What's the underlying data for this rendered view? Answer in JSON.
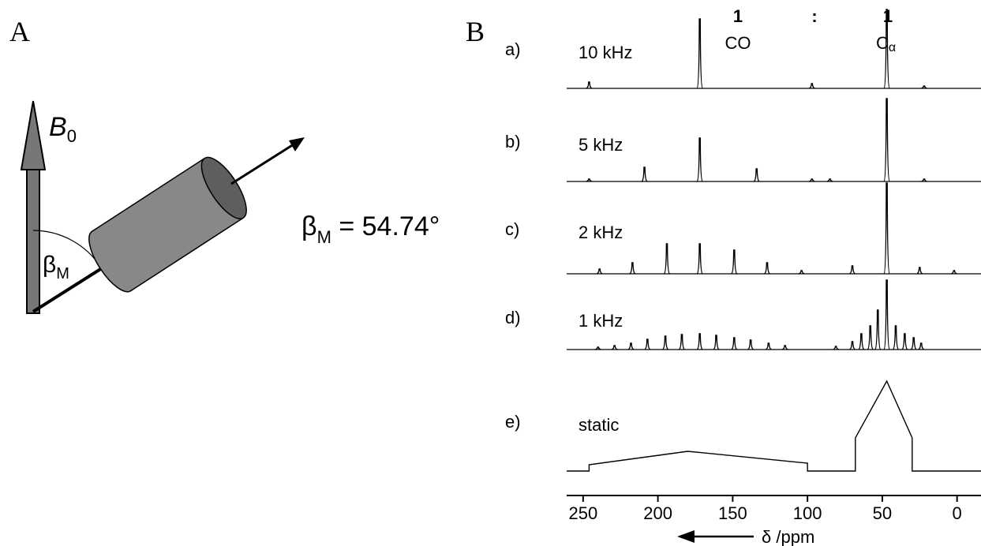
{
  "panel_a": {
    "label": "A",
    "field": "B",
    "field_sub": "0",
    "angle": "β",
    "angle_sub": "M",
    "equation_symbol": "β",
    "equation_sub": "M",
    "equation_rest": " = 54.74°"
  },
  "chart_data": {
    "type": "spectrum",
    "panel_label": "B",
    "ratio": [
      "1",
      ":",
      "1"
    ],
    "peak_labels": {
      "co": "CO",
      "ca": "C",
      "ca_sub": "α"
    },
    "x_label": "δ /ppm",
    "xlim": [
      261,
      -16
    ],
    "xticks": [
      250,
      200,
      150,
      100,
      50,
      0
    ],
    "series": [
      {
        "tag": "a)",
        "name": "10 kHz",
        "style": "peaks",
        "x": [
          246,
          172,
          97,
          47,
          22
        ],
        "values": [
          8,
          88,
          6,
          100,
          3
        ]
      },
      {
        "tag": "b)",
        "name": "5 kHz",
        "style": "peaks",
        "x": [
          246,
          209,
          172,
          134,
          97,
          85,
          47,
          22
        ],
        "values": [
          3,
          18,
          55,
          16,
          3,
          3,
          105,
          3
        ]
      },
      {
        "tag": "c)",
        "name": "2 kHz",
        "style": "peaks",
        "x": [
          239,
          217,
          194,
          172,
          149,
          127,
          104,
          70,
          47,
          25,
          2
        ],
        "values": [
          6,
          14,
          38,
          38,
          30,
          14,
          4,
          10,
          115,
          8,
          4
        ]
      },
      {
        "tag": "d)",
        "name": "1 kHz",
        "style": "peaks",
        "x": [
          240,
          229,
          218,
          207,
          195,
          184,
          172,
          161,
          149,
          138,
          126,
          115,
          81,
          70,
          64,
          58,
          53,
          47,
          41,
          35,
          29,
          24
        ],
        "values": [
          3,
          5,
          8,
          13,
          17,
          19,
          20,
          18,
          15,
          12,
          8,
          5,
          4,
          10,
          20,
          30,
          50,
          88,
          30,
          20,
          15,
          8
        ]
      },
      {
        "tag": "e)",
        "name": "static",
        "style": "line",
        "x": [
          261,
          246,
          246,
          180,
          100,
          100,
          68,
          68,
          47,
          30,
          30,
          -16
        ],
        "values": [
          0,
          0,
          8,
          25,
          10,
          0,
          0,
          42,
          114,
          42,
          0,
          0
        ]
      }
    ]
  }
}
